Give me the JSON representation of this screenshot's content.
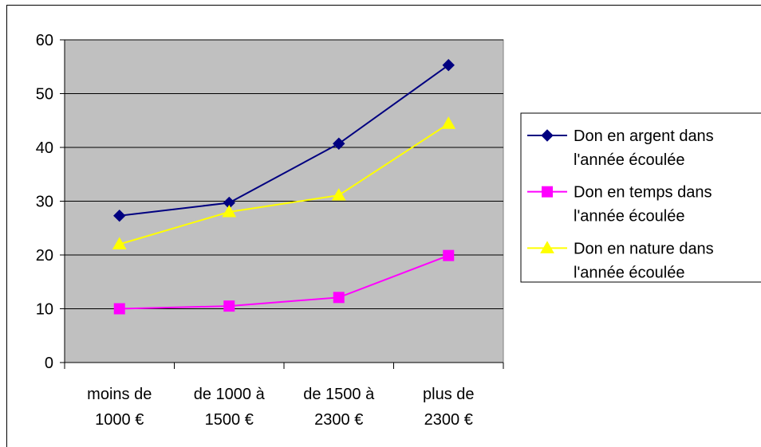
{
  "chart_data": {
    "type": "line",
    "categories": [
      [
        "moins de",
        "1000 €"
      ],
      [
        "de 1000 à",
        "1500 €"
      ],
      [
        "de 1500 à",
        "2300 €"
      ],
      [
        "plus de",
        "2300 €"
      ]
    ],
    "ylim": [
      0,
      60
    ],
    "yticks": [
      0,
      10,
      20,
      30,
      40,
      50,
      60
    ],
    "grid": true,
    "plot_background": "#c0c0c0",
    "legend_position": "right",
    "series": [
      {
        "name": [
          "Don en argent dans",
          "l'année écoulée"
        ],
        "values": [
          27.3,
          29.7,
          40.7,
          55.3
        ],
        "color": "#000080",
        "marker": "diamond"
      },
      {
        "name": [
          "Don en temps dans",
          "l'année écoulée"
        ],
        "values": [
          10,
          10.5,
          12.1,
          19.9
        ],
        "color": "#ff00ff",
        "marker": "square"
      },
      {
        "name": [
          "Don en nature dans",
          "l'année écoulée"
        ],
        "values": [
          22,
          28,
          31.1,
          44.4
        ],
        "color": "#ffff00",
        "marker": "triangle"
      }
    ]
  }
}
